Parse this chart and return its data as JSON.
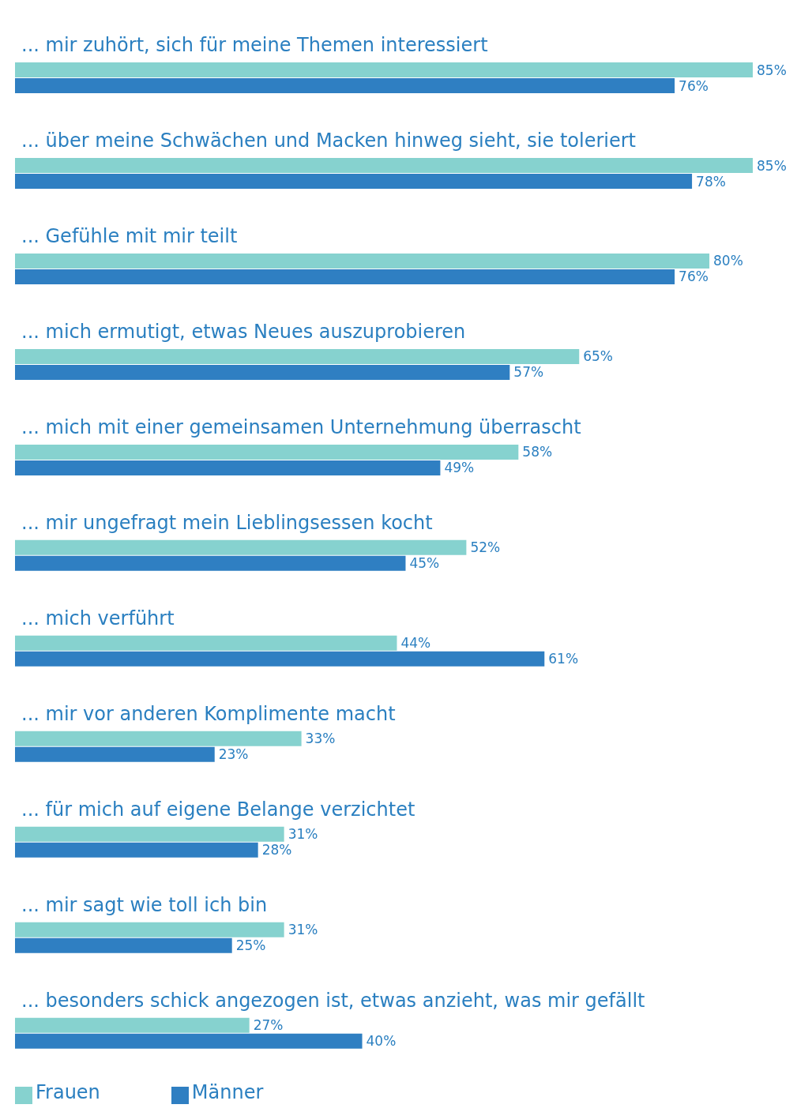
{
  "chart_data": {
    "type": "bar",
    "orientation": "horizontal",
    "categories": [
      "... mir zuhört, sich für meine Themen interessiert",
      "... über meine Schwächen und Macken hinweg sieht, sie toleriert",
      "... Gefühle mit mir teilt",
      "... mich ermutigt, etwas Neues auszuprobieren",
      "... mich mit einer gemeinsamen Unternehmung überrascht",
      "... mir ungefragt mein Lieblingsessen kocht",
      "... mich verführt",
      "... mir vor anderen Komplimente macht",
      "... für mich auf eigene Belange verzichtet",
      "... mir sagt wie toll ich bin",
      "... besonders schick angezogen ist, etwas anzieht, was mir gefällt"
    ],
    "series": [
      {
        "name": "Frauen",
        "color": "#86d2cf",
        "values": [
          85,
          85,
          80,
          65,
          58,
          52,
          44,
          33,
          31,
          31,
          27
        ],
        "value_labels": [
          "85%",
          "85%",
          "80%",
          "65%",
          "58%",
          "52%",
          "44%",
          "33%",
          "31%",
          "31%",
          "27%"
        ]
      },
      {
        "name": "Männer",
        "color": "#2f7fc2",
        "values": [
          76,
          78,
          76,
          57,
          49,
          45,
          61,
          23,
          28,
          25,
          40
        ],
        "value_labels": [
          "76%",
          "78%",
          "76%",
          "57%",
          "49%",
          "45%",
          "61%",
          "23%",
          "28%",
          "25%",
          "40%"
        ]
      }
    ],
    "tick_labels": false,
    "legend": "bottom left"
  }
}
